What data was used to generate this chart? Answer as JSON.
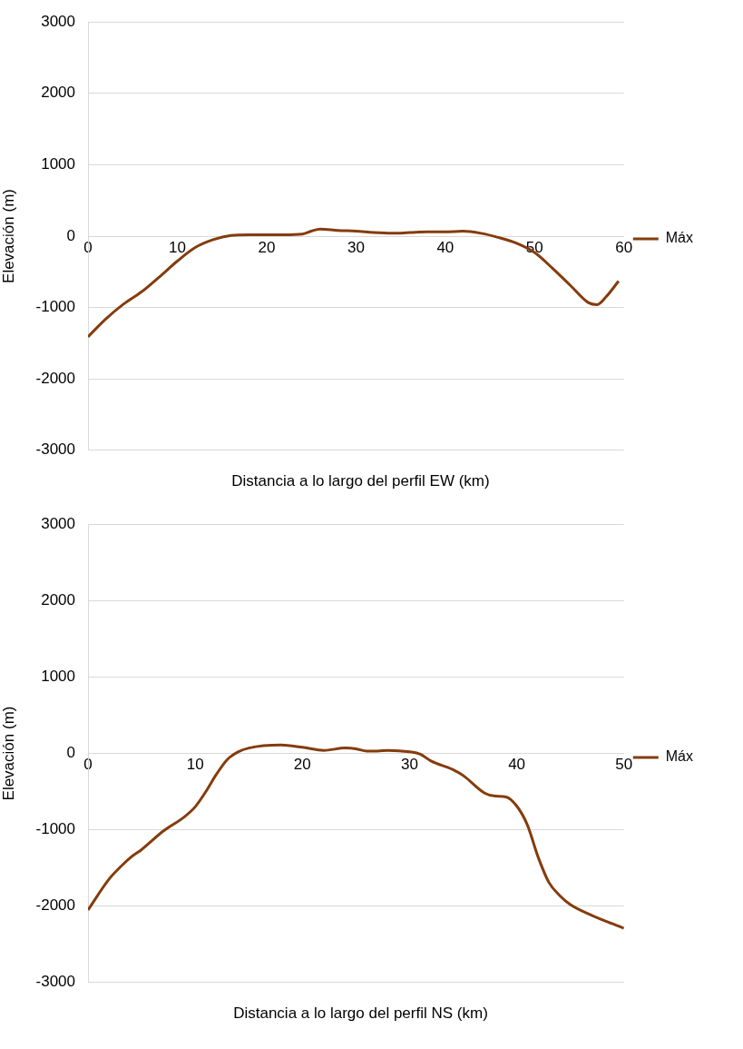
{
  "chart_data": [
    {
      "type": "line",
      "xlabel": "Distancia a lo largo del perfil EW (km)",
      "ylabel": "Elevación (m)",
      "xlim": [
        0,
        60
      ],
      "xticks": [
        0,
        10,
        20,
        30,
        40,
        50,
        60
      ],
      "ylim": [
        -3000,
        3000
      ],
      "yticks": [
        -3000,
        -2000,
        -1000,
        0,
        1000,
        2000,
        3000
      ],
      "grid": "y",
      "legend": "right",
      "marker": "none",
      "line_style": "solid",
      "series": [
        {
          "name": "Máx",
          "color": "#843c0c",
          "x": [
            0,
            2,
            4,
            6,
            8,
            10,
            12,
            14,
            16,
            18,
            20,
            22,
            24,
            25,
            26,
            28,
            30,
            32,
            34,
            36,
            38,
            40,
            42,
            44,
            46,
            48,
            50,
            52,
            54,
            56,
            57,
            58,
            59.4
          ],
          "values": [
            -1410,
            -1160,
            -950,
            -780,
            -570,
            -350,
            -160,
            -50,
            10,
            20,
            20,
            20,
            30,
            70,
            100,
            80,
            70,
            50,
            40,
            50,
            60,
            60,
            70,
            40,
            -20,
            -100,
            -230,
            -450,
            -690,
            -930,
            -960,
            -850,
            -630
          ]
        }
      ]
    },
    {
      "type": "line",
      "xlabel": "Distancia a lo largo del perfil NS (km)",
      "ylabel": "Elevación (m)",
      "xlim": [
        0,
        50
      ],
      "xticks": [
        0,
        10,
        20,
        30,
        40,
        50
      ],
      "ylim": [
        -3000,
        3000
      ],
      "yticks": [
        -3000,
        -2000,
        -1000,
        0,
        1000,
        2000,
        3000
      ],
      "grid": "y",
      "legend": "right",
      "marker": "none",
      "line_style": "solid",
      "series": [
        {
          "name": "Máx",
          "color": "#843c0c",
          "x": [
            0,
            2,
            3,
            4,
            5,
            7,
            9,
            10,
            11,
            12,
            13,
            14,
            15,
            18,
            20,
            22,
            24,
            25,
            26,
            27,
            28,
            30,
            31,
            32,
            34,
            35,
            37,
            38,
            39,
            40,
            41,
            42,
            43,
            44,
            45,
            47,
            50
          ],
          "values": [
            -2050,
            -1640,
            -1490,
            -1360,
            -1260,
            -1020,
            -830,
            -700,
            -500,
            -270,
            -80,
            20,
            70,
            110,
            80,
            40,
            70,
            60,
            30,
            30,
            40,
            20,
            -10,
            -100,
            -210,
            -290,
            -520,
            -560,
            -570,
            -690,
            -940,
            -1360,
            -1690,
            -1860,
            -1980,
            -2120,
            -2290
          ]
        }
      ]
    }
  ]
}
